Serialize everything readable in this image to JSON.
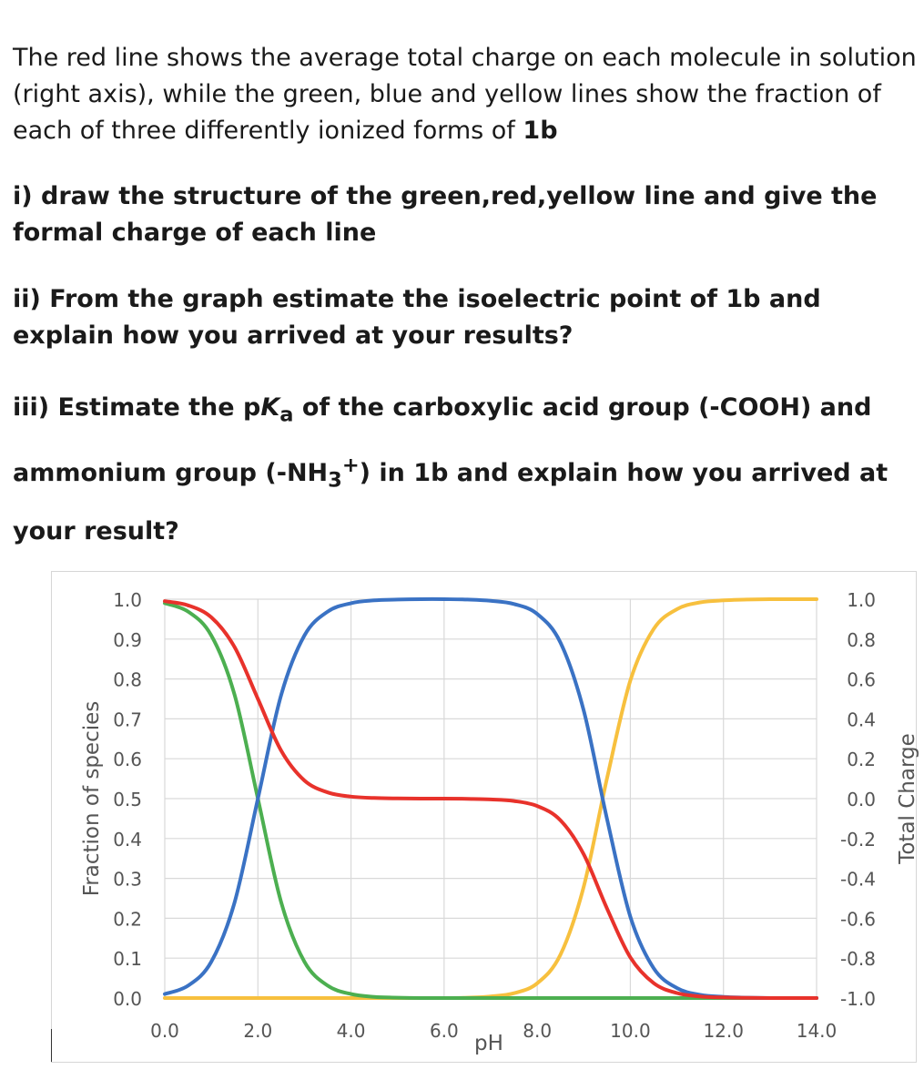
{
  "question": {
    "intro_pre": "The red line shows the average total charge on each molecule in solution (right axis), while the green, blue and yellow lines show the fraction of each of three differently ionized forms of ",
    "intro_bold": "1b",
    "q1": "i) draw the structure of the  green,red,yellow line and give the formal charge of each line",
    "q2": "ii) From the graph estimate the isoelectric point of 1b and explain how you arrived at your results?",
    "q3_a": "iii) Estimate the p",
    "q3_k": "K",
    "q3_a_sub": "a",
    "q3_b": " of the carboxylic acid group (-COOH) and ammonium group (-NH",
    "q3_sub3": "3",
    "q3_sup": "+",
    "q3_c": ") in 1b and explain how you arrived at your result?"
  },
  "chart_data": {
    "type": "line",
    "xlabel": "pH",
    "ylabel": "Fraction of species",
    "y2label": "Total Charge",
    "xlim": [
      0,
      14
    ],
    "ylim": [
      0,
      1
    ],
    "y2lim": [
      -1,
      1
    ],
    "x_ticks": [
      "0.0",
      "2.0",
      "4.0",
      "6.0",
      "8.0",
      "10.0",
      "12.0",
      "14.0"
    ],
    "y_ticks": [
      "0.0",
      "0.1",
      "0.2",
      "0.3",
      "0.4",
      "0.5",
      "0.6",
      "0.7",
      "0.8",
      "0.9",
      "1.0"
    ],
    "y2_ticks": [
      "-1.0",
      "-0.8",
      "-0.6",
      "-0.4",
      "-0.2",
      "0.0",
      "0.2",
      "0.4",
      "0.6",
      "0.8",
      "1.0"
    ],
    "grid": true,
    "colors": {
      "green": "#4caf50",
      "blue": "#3a72c4",
      "yellow": "#f7c03e",
      "red": "#e8322b",
      "grid": "#d9d9d9"
    },
    "pH": [
      0,
      0.5,
      1,
      1.5,
      2,
      2.5,
      3,
      3.5,
      4,
      4.5,
      5,
      5.5,
      6,
      6.5,
      7,
      7.5,
      8,
      8.5,
      9,
      9.5,
      10,
      10.5,
      11,
      11.5,
      12,
      12.5,
      13,
      13.5,
      14
    ],
    "series": [
      {
        "color": "green",
        "axis": "left",
        "values": [
          0.99,
          0.969,
          0.909,
          0.76,
          0.5,
          0.24,
          0.091,
          0.031,
          0.01,
          0.003,
          0.001,
          0,
          0,
          0,
          0,
          0,
          0,
          0,
          0,
          0,
          0,
          0,
          0,
          0,
          0,
          0,
          0,
          0,
          0
        ]
      },
      {
        "color": "blue",
        "axis": "left",
        "values": [
          0.01,
          0.031,
          0.091,
          0.24,
          0.5,
          0.76,
          0.909,
          0.969,
          0.99,
          0.997,
          0.999,
          1,
          1,
          0.999,
          0.996,
          0.988,
          0.963,
          0.891,
          0.72,
          0.448,
          0.204,
          0.075,
          0.025,
          0.008,
          0.003,
          0.001,
          0,
          0,
          0
        ]
      },
      {
        "color": "yellow",
        "axis": "left",
        "values": [
          0,
          0,
          0,
          0,
          0,
          0,
          0,
          0,
          0,
          0,
          0,
          0,
          0,
          0.001,
          0.004,
          0.012,
          0.037,
          0.109,
          0.28,
          0.552,
          0.796,
          0.925,
          0.975,
          0.992,
          0.997,
          0.999,
          1,
          1,
          1
        ]
      },
      {
        "color": "red",
        "axis": "right",
        "values": [
          0.99,
          0.969,
          0.909,
          0.76,
          0.5,
          0.24,
          0.091,
          0.031,
          0.01,
          0.003,
          0.001,
          0,
          0,
          -0.001,
          -0.004,
          -0.012,
          -0.037,
          -0.109,
          -0.28,
          -0.552,
          -0.796,
          -0.925,
          -0.975,
          -0.992,
          -0.997,
          -0.999,
          -1,
          -1,
          -1
        ]
      }
    ]
  }
}
